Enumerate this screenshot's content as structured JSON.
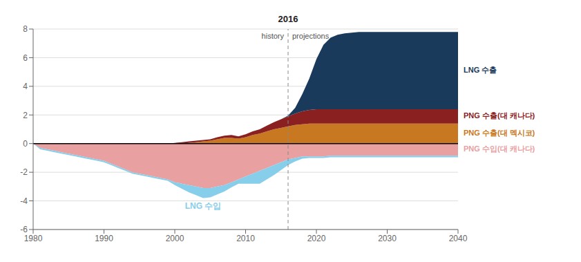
{
  "chart_data": {
    "type": "area",
    "title": "2016",
    "stacked": true,
    "grid": true,
    "divider": 2016,
    "annotations": [
      "history",
      "projections"
    ],
    "xlim": [
      1980,
      2040
    ],
    "xticks": [
      1980,
      1990,
      2000,
      2010,
      2020,
      2030,
      2040
    ],
    "ylim": [
      -6,
      8
    ],
    "yticks": [
      -6,
      -4,
      -2,
      0,
      2,
      4,
      6,
      8
    ],
    "x": [
      1980,
      1981,
      1982,
      1983,
      1984,
      1985,
      1986,
      1987,
      1988,
      1989,
      1990,
      1991,
      1992,
      1993,
      1994,
      1995,
      1996,
      1997,
      1998,
      1999,
      2000,
      2001,
      2002,
      2003,
      2004,
      2005,
      2006,
      2007,
      2008,
      2009,
      2010,
      2011,
      2012,
      2013,
      2014,
      2015,
      2016,
      2017,
      2018,
      2019,
      2020,
      2021,
      2022,
      2023,
      2024,
      2025,
      2026,
      2027,
      2028,
      2029,
      2030,
      2031,
      2032,
      2033,
      2034,
      2035,
      2036,
      2037,
      2038,
      2039,
      2040
    ],
    "series": [
      {
        "name": "PNG 수출(대 멕시코)",
        "color": "#c87820",
        "values": [
          0.0,
          0.0,
          0.0,
          0.0,
          0.0,
          0.0,
          0.0,
          0.0,
          0.0,
          0.0,
          0.0,
          0.0,
          0.0,
          0.0,
          0.0,
          0.0,
          0.0,
          0.0,
          0.0,
          0.0,
          0.0,
          0.0,
          0.05,
          0.1,
          0.15,
          0.2,
          0.3,
          0.4,
          0.4,
          0.35,
          0.45,
          0.6,
          0.7,
          0.85,
          1.0,
          1.1,
          1.2,
          1.3,
          1.35,
          1.4,
          1.4,
          1.4,
          1.4,
          1.4,
          1.4,
          1.4,
          1.4,
          1.4,
          1.4,
          1.4,
          1.4,
          1.4,
          1.4,
          1.4,
          1.4,
          1.4,
          1.4,
          1.4,
          1.4,
          1.4,
          1.4
        ]
      },
      {
        "name": "PNG 수출(대 캐나다)",
        "color": "#8b2020",
        "values": [
          0.0,
          0.0,
          0.0,
          0.0,
          0.0,
          0.0,
          0.0,
          0.0,
          0.0,
          0.0,
          0.0,
          0.0,
          0.0,
          0.0,
          0.0,
          0.0,
          0.0,
          0.0,
          0.0,
          0.0,
          0.05,
          0.1,
          0.1,
          0.1,
          0.1,
          0.1,
          0.15,
          0.15,
          0.2,
          0.15,
          0.2,
          0.25,
          0.3,
          0.4,
          0.5,
          0.6,
          0.7,
          0.8,
          0.9,
          0.95,
          1.0,
          1.0,
          1.0,
          1.0,
          1.0,
          1.0,
          1.0,
          1.0,
          1.0,
          1.0,
          1.0,
          1.0,
          1.0,
          1.0,
          1.0,
          1.0,
          1.0,
          1.0,
          1.0,
          1.0,
          1.0
        ]
      },
      {
        "name": "LNG 수출",
        "color": "#1a3a5c",
        "values": [
          0.0,
          0.0,
          0.0,
          0.0,
          0.0,
          0.0,
          0.0,
          0.0,
          0.0,
          0.0,
          0.0,
          0.0,
          0.0,
          0.0,
          0.0,
          0.0,
          0.0,
          0.0,
          0.0,
          0.0,
          0.0,
          0.0,
          0.0,
          0.0,
          0.0,
          0.0,
          0.0,
          0.0,
          0.0,
          0.0,
          0.0,
          0.0,
          0.0,
          0.0,
          0.0,
          0.0,
          0.05,
          0.4,
          1.2,
          2.2,
          3.5,
          4.5,
          5.0,
          5.2,
          5.3,
          5.35,
          5.4,
          5.4,
          5.4,
          5.4,
          5.4,
          5.4,
          5.4,
          5.4,
          5.4,
          5.4,
          5.4,
          5.4,
          5.4,
          5.4,
          5.4
        ]
      },
      {
        "name": "PNG 수입(대 캐나다)",
        "color": "#e8a0a0",
        "values": [
          0.0,
          -0.3,
          -0.4,
          -0.5,
          -0.6,
          -0.7,
          -0.8,
          -0.9,
          -1.0,
          -1.1,
          -1.2,
          -1.4,
          -1.6,
          -1.8,
          -2.0,
          -2.1,
          -2.2,
          -2.3,
          -2.4,
          -2.5,
          -2.7,
          -2.8,
          -2.9,
          -3.0,
          -3.1,
          -3.1,
          -3.0,
          -2.9,
          -2.7,
          -2.5,
          -2.3,
          -2.1,
          -1.9,
          -1.7,
          -1.5,
          -1.3,
          -1.1,
          -1.0,
          -0.9,
          -0.9,
          -0.9,
          -0.9,
          -0.85,
          -0.85,
          -0.85,
          -0.85,
          -0.85,
          -0.85,
          -0.85,
          -0.85,
          -0.85,
          -0.85,
          -0.85,
          -0.85,
          -0.85,
          -0.85,
          -0.85,
          -0.85,
          -0.85,
          -0.85,
          -0.85
        ]
      },
      {
        "name": "LNG 수입",
        "color": "#87ceeb",
        "values": [
          0.0,
          -0.1,
          -0.1,
          -0.1,
          -0.1,
          -0.1,
          -0.1,
          -0.1,
          -0.1,
          -0.1,
          -0.1,
          -0.1,
          -0.1,
          -0.1,
          -0.1,
          -0.1,
          -0.1,
          -0.1,
          -0.1,
          -0.1,
          -0.2,
          -0.35,
          -0.5,
          -0.6,
          -0.7,
          -0.65,
          -0.55,
          -0.45,
          -0.35,
          -0.3,
          -0.5,
          -0.7,
          -0.9,
          -0.8,
          -0.7,
          -0.55,
          -0.4,
          -0.25,
          -0.15,
          -0.1,
          -0.1,
          -0.1,
          -0.1,
          -0.1,
          -0.1,
          -0.1,
          -0.1,
          -0.1,
          -0.1,
          -0.1,
          -0.1,
          -0.1,
          -0.1,
          -0.1,
          -0.1,
          -0.1,
          -0.1,
          -0.1,
          -0.1,
          -0.1,
          -0.1
        ]
      }
    ]
  }
}
